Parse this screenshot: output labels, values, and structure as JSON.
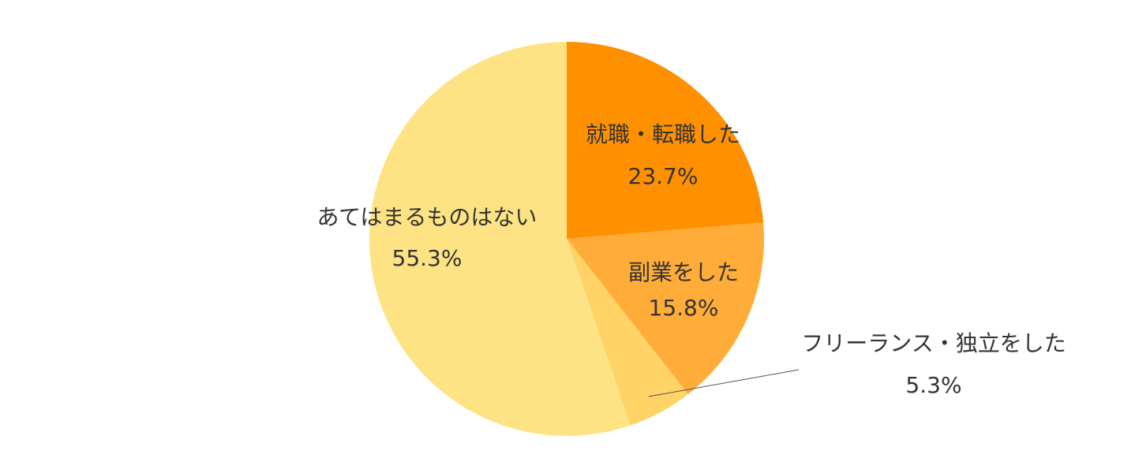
{
  "chart_data": {
    "type": "pie",
    "title": "",
    "legend": "none",
    "slices": [
      {
        "label": "就職・転職した",
        "value": 23.7,
        "value_label": "23.7%",
        "color": "#ff9000"
      },
      {
        "label": "副業をした",
        "value": 15.8,
        "value_label": "15.8%",
        "color": "#ffad38"
      },
      {
        "label": "フリーランス・独立をした",
        "value": 5.3,
        "value_label": "5.3%",
        "color": "#ffd366"
      },
      {
        "label": "あてはまるものはない",
        "value": 55.3,
        "value_label": "55.3%",
        "color": "#fde384"
      }
    ],
    "leader_line_color": "#555555"
  }
}
